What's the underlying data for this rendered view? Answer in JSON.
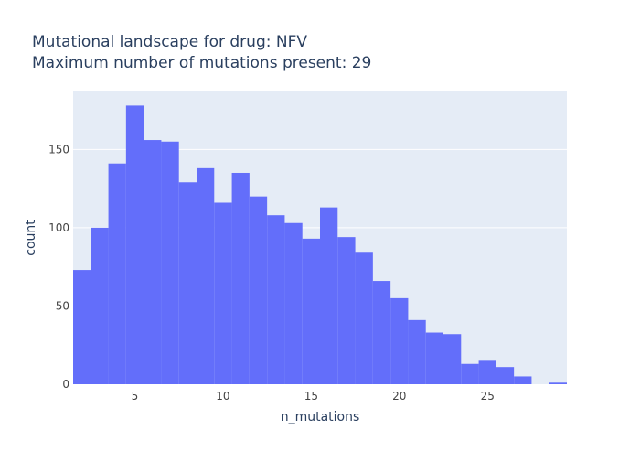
{
  "chart_data": {
    "type": "bar",
    "title_lines": [
      "Mutational landscape for drug: NFV",
      "Maximum number of mutations present: 29"
    ],
    "xlabel": "n_mutations",
    "ylabel": "count",
    "xlim": [
      1.5,
      29.5
    ],
    "ylim": [
      0,
      187
    ],
    "x_ticks": [
      5,
      10,
      15,
      20,
      25
    ],
    "y_ticks": [
      0,
      50,
      100,
      150
    ],
    "grid": true,
    "legend": "none",
    "colors": {
      "bar": "#636efa",
      "plot_bg": "#e5ecf6",
      "grid": "#ffffff",
      "text": "#2a3f5f",
      "tick_text": "#444444"
    },
    "bins": [
      {
        "x": 2,
        "count": 73
      },
      {
        "x": 3,
        "count": 100
      },
      {
        "x": 4,
        "count": 141
      },
      {
        "x": 5,
        "count": 178
      },
      {
        "x": 6,
        "count": 156
      },
      {
        "x": 7,
        "count": 155
      },
      {
        "x": 8,
        "count": 129
      },
      {
        "x": 9,
        "count": 138
      },
      {
        "x": 10,
        "count": 116
      },
      {
        "x": 11,
        "count": 135
      },
      {
        "x": 12,
        "count": 120
      },
      {
        "x": 13,
        "count": 108
      },
      {
        "x": 14,
        "count": 103
      },
      {
        "x": 15,
        "count": 93
      },
      {
        "x": 16,
        "count": 113
      },
      {
        "x": 17,
        "count": 94
      },
      {
        "x": 18,
        "count": 84
      },
      {
        "x": 19,
        "count": 66
      },
      {
        "x": 20,
        "count": 55
      },
      {
        "x": 21,
        "count": 41
      },
      {
        "x": 22,
        "count": 33
      },
      {
        "x": 23,
        "count": 32
      },
      {
        "x": 24,
        "count": 13
      },
      {
        "x": 25,
        "count": 15
      },
      {
        "x": 26,
        "count": 11
      },
      {
        "x": 27,
        "count": 5
      },
      {
        "x": 28,
        "count": 0
      },
      {
        "x": 29,
        "count": 1
      }
    ]
  }
}
